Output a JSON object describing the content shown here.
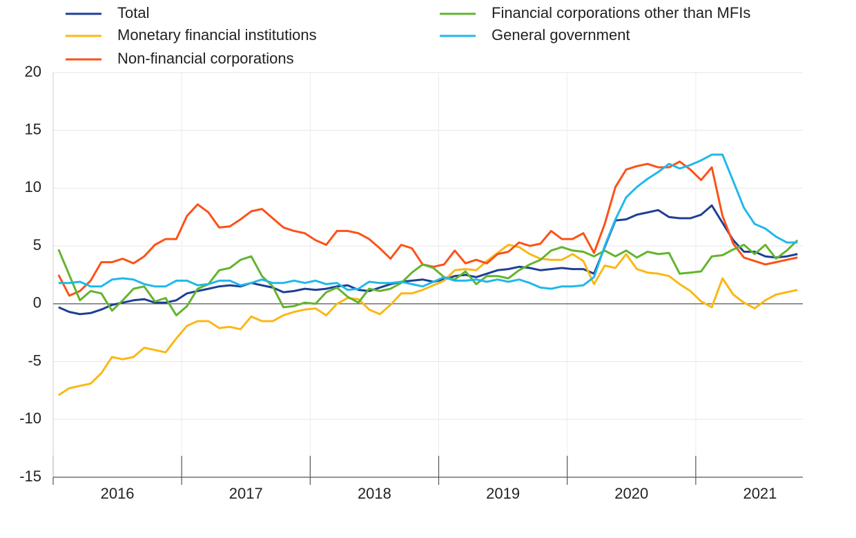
{
  "chart_data": {
    "type": "line",
    "categories": [
      null,
      null,
      null,
      null,
      null,
      null,
      "2016",
      null,
      null,
      null,
      null,
      null,
      null,
      null,
      null,
      null,
      null,
      null,
      "2017",
      null,
      null,
      null,
      null,
      null,
      null,
      null,
      null,
      null,
      null,
      null,
      "2018",
      null,
      null,
      null,
      null,
      null,
      null,
      null,
      null,
      null,
      null,
      null,
      "2019",
      null,
      null,
      null,
      null,
      null,
      null,
      null,
      null,
      null,
      null,
      null,
      "2020",
      null,
      null,
      null,
      null,
      null,
      null,
      null,
      null,
      null,
      null,
      null,
      "2021",
      null,
      null,
      null
    ],
    "series": [
      {
        "name": "Total",
        "color": "#1d3f94",
        "values": [
          -0.3,
          -0.7,
          -0.9,
          -0.8,
          -0.5,
          -0.1,
          0.1,
          0.3,
          0.4,
          0.1,
          0.1,
          0.3,
          0.9,
          1.1,
          1.3,
          1.5,
          1.6,
          1.5,
          1.8,
          1.6,
          1.4,
          1.0,
          1.1,
          1.3,
          1.2,
          1.3,
          1.5,
          1.6,
          1.2,
          1.1,
          1.4,
          1.7,
          1.9,
          2.0,
          2.1,
          1.9,
          2.1,
          2.4,
          2.5,
          2.3,
          2.6,
          2.9,
          3.0,
          3.2,
          3.1,
          2.9,
          3.0,
          3.1,
          3.0,
          3.0,
          2.6,
          4.9,
          7.2,
          7.3,
          7.7,
          7.9,
          8.1,
          7.5,
          7.4,
          7.4,
          7.7,
          8.5,
          7.0,
          5.5,
          4.5,
          4.5,
          4.1,
          4.0,
          4.1,
          4.3
        ]
      },
      {
        "name": "Monetary financial institutions",
        "color": "#fbb714",
        "values": [
          -7.9,
          -7.3,
          -7.1,
          -6.9,
          -6.0,
          -4.6,
          -4.8,
          -4.6,
          -3.8,
          -4.0,
          -4.2,
          -3.0,
          -1.9,
          -1.5,
          -1.5,
          -2.1,
          -2.0,
          -2.2,
          -1.1,
          -1.5,
          -1.5,
          -1.0,
          -0.7,
          -0.5,
          -0.4,
          -1.0,
          0.0,
          0.5,
          0.4,
          -0.5,
          -0.9,
          -0.1,
          0.9,
          0.9,
          1.2,
          1.6,
          2.0,
          2.9,
          3.0,
          2.9,
          3.7,
          4.4,
          5.1,
          4.9,
          4.3,
          3.9,
          3.8,
          3.8,
          4.3,
          3.7,
          1.7,
          3.3,
          3.1,
          4.3,
          3.0,
          2.7,
          2.6,
          2.4,
          1.7,
          1.1,
          0.2,
          -0.3,
          2.2,
          0.8,
          0.1,
          -0.4,
          0.3,
          0.8,
          1.0,
          1.2
        ]
      },
      {
        "name": "Non-financial corporations",
        "color": "#fc5116",
        "values": [
          2.5,
          0.7,
          1.1,
          2.0,
          3.6,
          3.6,
          3.9,
          3.5,
          4.1,
          5.1,
          5.6,
          5.6,
          7.6,
          8.6,
          7.9,
          6.6,
          6.7,
          7.3,
          8.0,
          8.2,
          7.4,
          6.6,
          6.3,
          6.1,
          5.5,
          5.1,
          6.3,
          6.3,
          6.1,
          5.6,
          4.8,
          3.9,
          5.1,
          4.8,
          3.4,
          3.2,
          3.4,
          4.6,
          3.5,
          3.8,
          3.5,
          4.3,
          4.5,
          5.3,
          5.0,
          5.2,
          6.3,
          5.6,
          5.6,
          6.1,
          4.4,
          6.9,
          10.1,
          11.6,
          11.9,
          12.1,
          11.8,
          11.8,
          12.3,
          11.6,
          10.7,
          11.8,
          7.6,
          5.2,
          4.0,
          3.7,
          3.4,
          3.6,
          3.8,
          4.0
        ]
      },
      {
        "name": "Financial corporations other than MFIs",
        "color": "#63b42d",
        "values": [
          4.7,
          2.5,
          0.3,
          1.1,
          0.9,
          -0.6,
          0.3,
          1.3,
          1.5,
          0.2,
          0.5,
          -1.0,
          -0.2,
          1.3,
          1.7,
          2.9,
          3.1,
          3.8,
          4.1,
          2.4,
          1.5,
          -0.3,
          -0.2,
          0.1,
          0.0,
          1.0,
          1.4,
          0.6,
          0.1,
          1.3,
          1.1,
          1.3,
          1.8,
          2.7,
          3.4,
          3.1,
          2.3,
          2.1,
          2.8,
          1.7,
          2.4,
          2.4,
          2.2,
          2.9,
          3.4,
          3.8,
          4.6,
          4.9,
          4.6,
          4.5,
          4.1,
          4.6,
          4.1,
          4.6,
          4.0,
          4.5,
          4.3,
          4.4,
          2.6,
          2.7,
          2.8,
          4.1,
          4.2,
          4.7,
          5.1,
          4.3,
          5.1,
          3.9,
          4.6,
          5.5
        ]
      },
      {
        "name": "General government",
        "color": "#20b8ea",
        "values": [
          1.8,
          1.8,
          1.9,
          1.5,
          1.5,
          2.1,
          2.2,
          2.1,
          1.7,
          1.5,
          1.5,
          2.0,
          2.0,
          1.6,
          1.7,
          2.0,
          2.0,
          1.6,
          1.8,
          2.1,
          1.8,
          1.8,
          2.0,
          1.8,
          2.0,
          1.7,
          1.8,
          1.2,
          1.3,
          1.9,
          1.8,
          1.8,
          1.9,
          1.7,
          1.5,
          1.9,
          2.3,
          2.0,
          2.0,
          2.1,
          1.9,
          2.1,
          1.9,
          2.1,
          1.8,
          1.4,
          1.3,
          1.5,
          1.5,
          1.6,
          2.3,
          5.0,
          7.3,
          9.2,
          10.1,
          10.8,
          11.4,
          12.1,
          11.7,
          12.0,
          12.4,
          12.9,
          12.9,
          10.6,
          8.3,
          6.9,
          6.5,
          5.8,
          5.3,
          5.3
        ]
      }
    ],
    "ylim": [
      -15,
      20
    ],
    "yticks": [
      -15,
      -10,
      -5,
      0,
      5,
      10,
      15,
      20
    ],
    "grid": true
  }
}
